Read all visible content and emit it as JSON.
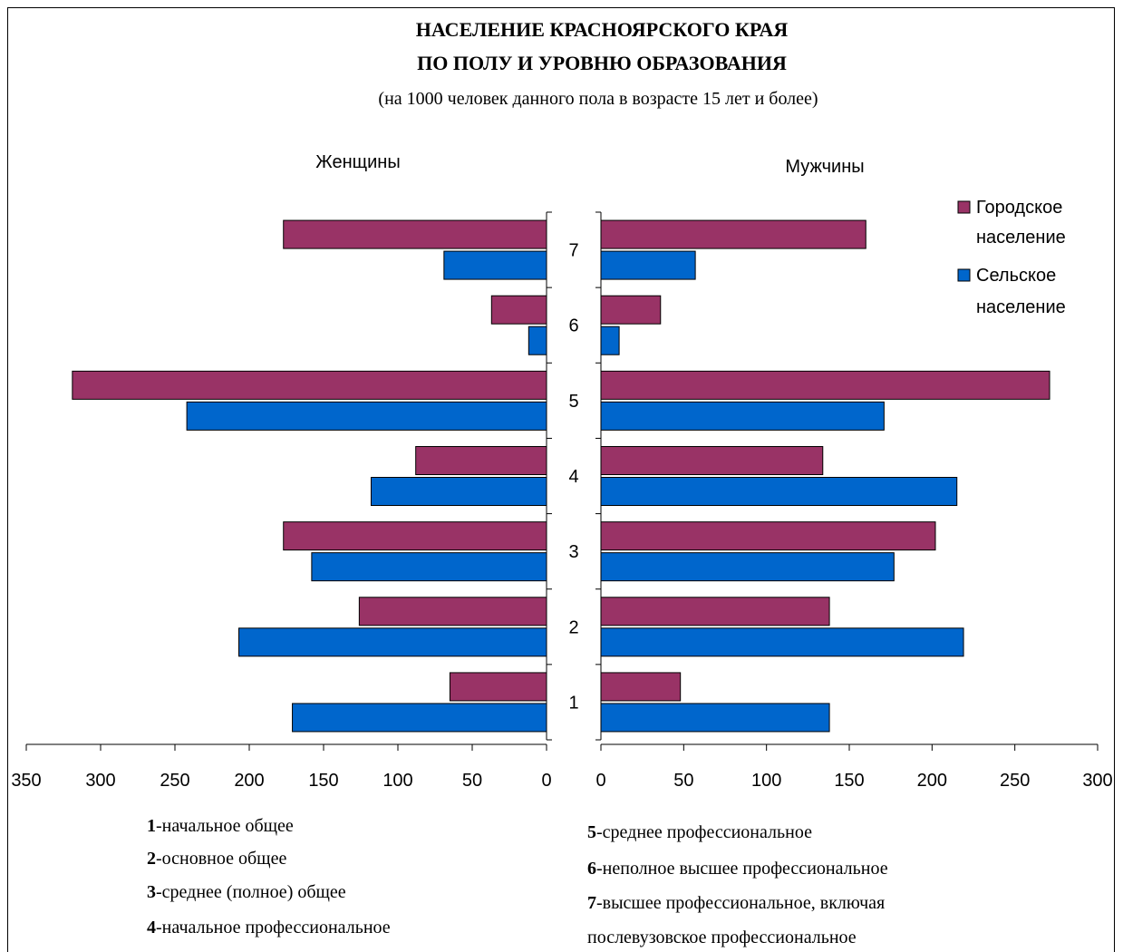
{
  "chart_data": {
    "type": "bar",
    "title": "НАСЕЛЕНИЕ КРАСНОЯРСКОГО КРАЯ",
    "title_line2": "ПО ПОЛУ И УРОВНЮ ОБРАЗОВАНИЯ",
    "subtitle": "(на 1000 человек данного пола в возрасте 15 лет и более)",
    "panels": [
      {
        "name": "Женщины",
        "xlim": [
          0,
          350
        ],
        "ticks": [
          "350",
          "300",
          "250",
          "200",
          "150",
          "100",
          "50",
          "0"
        ],
        "tick_values": [
          350,
          300,
          250,
          200,
          150,
          100,
          50,
          0
        ]
      },
      {
        "name": "Мужчины",
        "xlim": [
          0,
          300
        ],
        "ticks": [
          "0",
          "50",
          "100",
          "150",
          "200",
          "250",
          "300"
        ],
        "tick_values": [
          0,
          50,
          100,
          150,
          200,
          250,
          300
        ]
      }
    ],
    "categories": [
      "1",
      "2",
      "3",
      "4",
      "5",
      "6",
      "7"
    ],
    "series": [
      {
        "name": "Городское население",
        "women": [
          65,
          126,
          177,
          88,
          319,
          37,
          177
        ],
        "men": [
          48,
          138,
          202,
          134,
          271,
          36,
          160
        ]
      },
      {
        "name": "Сельское население",
        "women": [
          171,
          207,
          158,
          118,
          242,
          12,
          69
        ],
        "men": [
          138,
          219,
          177,
          215,
          171,
          11,
          57
        ]
      }
    ],
    "legend": {
      "position": "top-right",
      "items": [
        {
          "line1": "Городское",
          "line2": "население"
        },
        {
          "line1": "Сельское",
          "line2": "население"
        }
      ]
    },
    "colors": {
      "urban": "#993366",
      "rural": "#0066CC"
    },
    "notes_left": [
      {
        "num": "1",
        "text": "-начальное общее"
      },
      {
        "num": "2",
        "text": "-основное общее"
      },
      {
        "num": "3",
        "text": "-среднее (полное) общее"
      },
      {
        "num": "4",
        "text": "-начальное профессиональное"
      }
    ],
    "notes_right": [
      {
        "num": "5",
        "text": "-среднее профессиональное"
      },
      {
        "num": "6",
        "text": "-неполное высшее профессиональное"
      },
      {
        "num": "7",
        "text": "-высшее профессиональное, включая"
      },
      {
        "num": "",
        "text": "послевузовское профессиональное"
      }
    ]
  }
}
